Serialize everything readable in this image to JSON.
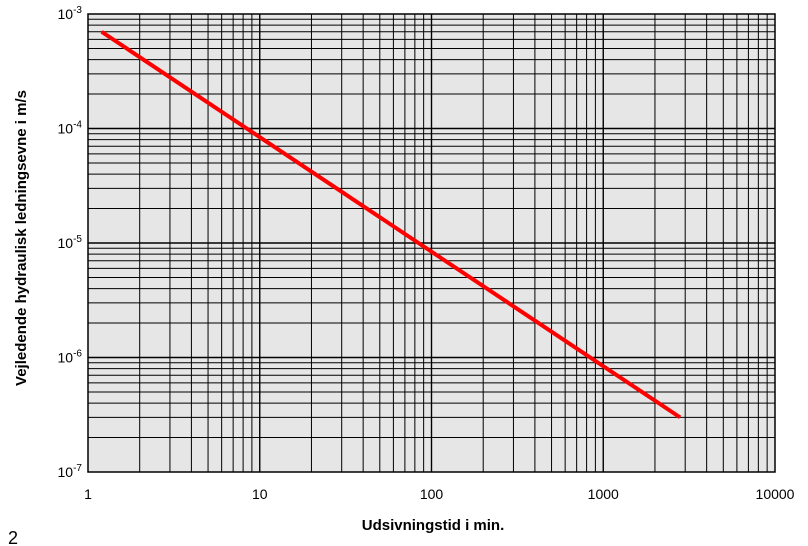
{
  "chart_data": {
    "type": "line",
    "xlabel": "Udsivningstid i min.",
    "ylabel": "Vejledende hydraulisk ledningsevne i m/s",
    "x_scale": "log",
    "y_scale": "log",
    "xlim": [
      1,
      10000
    ],
    "ylim": [
      1e-07,
      0.001
    ],
    "x_tick_labels": [
      "1",
      "10",
      "100",
      "1000",
      "10000"
    ],
    "y_tick_labels": [
      {
        "base": "10",
        "exp": "-3"
      },
      {
        "base": "10",
        "exp": "-4"
      },
      {
        "base": "10",
        "exp": "-5"
      },
      {
        "base": "10",
        "exp": "-6"
      },
      {
        "base": "10",
        "exp": "-7"
      }
    ],
    "grid": true,
    "background_color": "#e6e6e6",
    "line_color": "#ff0000",
    "series": [
      {
        "x": [
          1.2,
          2800
        ],
        "y": [
          0.0007,
          3e-07
        ]
      }
    ]
  },
  "corner_label": "2"
}
